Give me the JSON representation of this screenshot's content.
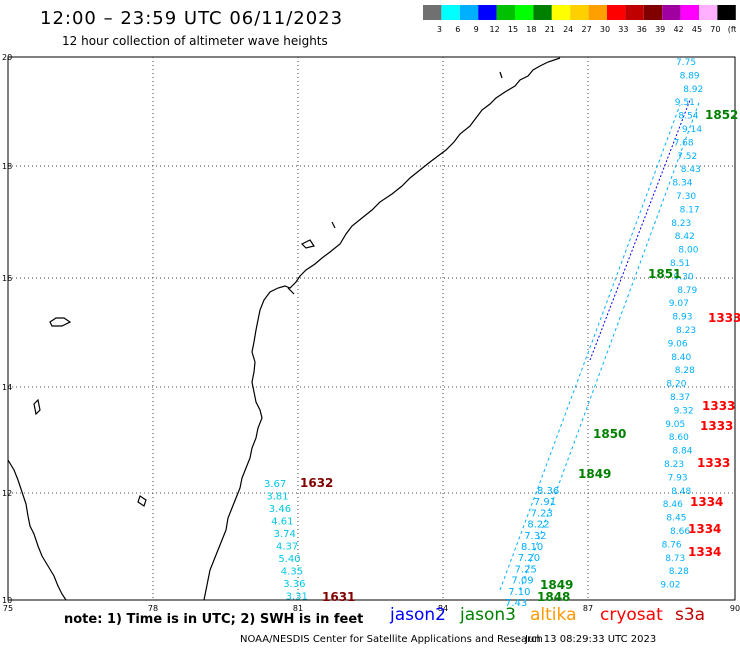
{
  "header": {
    "title": "12:00 – 23:59 UTC 06/11/2023",
    "subtitle": "12 hour collection of altimeter wave heights"
  },
  "legend": {
    "labels": [
      "3",
      "6",
      "9",
      "12",
      "15",
      "18",
      "21",
      "24",
      "27",
      "30",
      "33",
      "36",
      "39",
      "42",
      "45",
      "70",
      "(ft)"
    ],
    "colors": [
      "#707070",
      "#00ffff",
      "#00b0ff",
      "#0000ff",
      "#00c000",
      "#00ff00",
      "#008000",
      "#ffff00",
      "#ffd000",
      "#ffa000",
      "#ff0000",
      "#c00000",
      "#800000",
      "#a000a0",
      "#ff00ff",
      "#ffb0ff",
      "#000000"
    ]
  },
  "axes": {
    "lon_labels": [
      "75",
      "78",
      "81",
      "84",
      "87",
      "90"
    ],
    "lat_labels": [
      "20",
      "18",
      "16",
      "14",
      "12",
      "10"
    ]
  },
  "satellites": {
    "jason2": {
      "name": "jason2",
      "color": "#0000ff"
    },
    "jason3": {
      "name": "jason3",
      "color": "#008000"
    },
    "altika": {
      "name": "altika",
      "color": "#ff9900"
    },
    "cryosat": {
      "name": "cryosat",
      "color": "#ff0000"
    },
    "s3a": {
      "name": "s3a",
      "color": "#c00000"
    }
  },
  "track_times": {
    "t1632": "1632",
    "t1631": "1631",
    "t1850": "1850",
    "t1849a": "1849",
    "t1849b": "1849",
    "t1848": "1848",
    "t1851": "1851",
    "t1852": "1852",
    "t1333": "1333",
    "t1334": "1334"
  },
  "readings": {
    "west_track": [
      "3.67",
      "3.81",
      "3.46",
      "4.61",
      "3.74",
      "4.37",
      "5.40",
      "4.35",
      "3.36",
      "3.31"
    ],
    "mid_track": [
      "8.36",
      "7.91",
      "7.23",
      "8.22",
      "7.32",
      "8.10",
      "7.20",
      "7.25",
      "7.09",
      "7.10",
      "7.43"
    ],
    "east_track": [
      "7.75",
      "8.89",
      "8.92",
      "9.51",
      "8.54",
      "9.14",
      "7.68",
      "7.52",
      "8.43",
      "8.34",
      "7.30",
      "8.17",
      "8.23",
      "8.42",
      "8.00",
      "8.51",
      "9.30",
      "8.79",
      "9.07",
      "8.93",
      "8.23",
      "9.06",
      "8.40",
      "8.28",
      "8.20",
      "8.37",
      "9.32",
      "9.05",
      "8.60",
      "8.84",
      "8.23",
      "7.93",
      "8.48",
      "8.46",
      "8.45",
      "8.66",
      "8.76",
      "8.73",
      "8.28",
      "9.02"
    ]
  },
  "footer": {
    "note": "note: 1) Time is in UTC; 2) SWH is in feet",
    "credits": "NOAA/NESDIS Center for Satellite Applications and Research",
    "timestamp": "Jun 13 08:29:33 UTC 2023"
  }
}
